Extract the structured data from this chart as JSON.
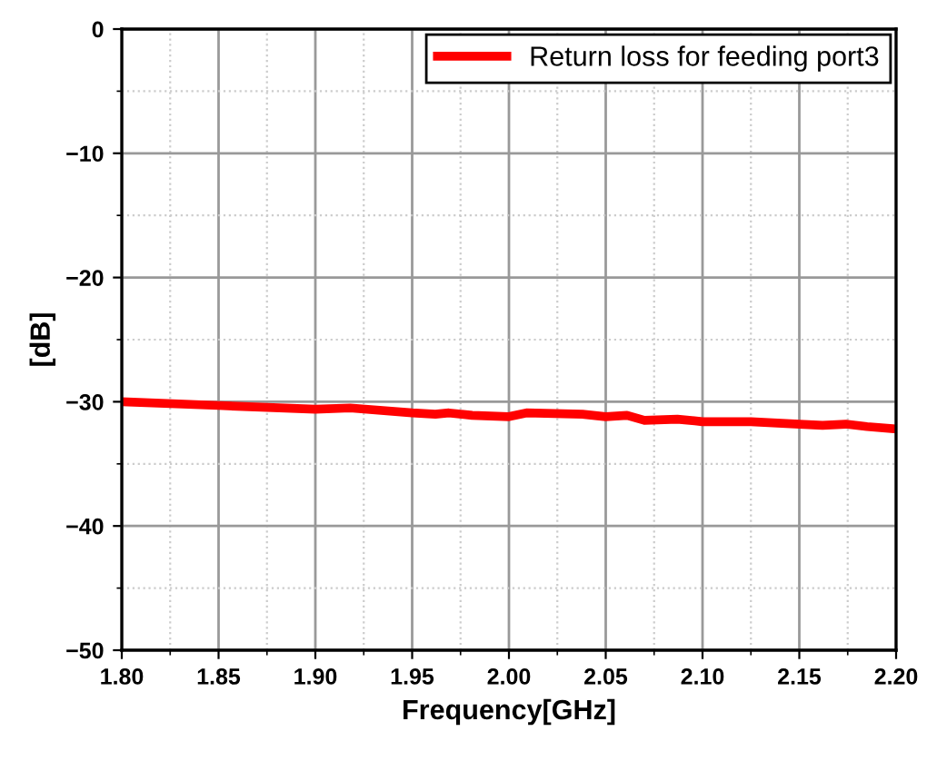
{
  "chart_data": {
    "type": "line",
    "xlabel": "Frequency[GHz]",
    "ylabel": "[dB]",
    "series": [
      {
        "name": "Return loss for feeding port3",
        "color": "#ff0000",
        "x": [
          1.8,
          1.85,
          1.9,
          1.918,
          1.95,
          1.962,
          1.969,
          1.981,
          2.0,
          2.009,
          2.038,
          2.05,
          2.061,
          2.07,
          2.087,
          2.1,
          2.125,
          2.15,
          2.162,
          2.174,
          2.185,
          2.2
        ],
        "values": [
          -30.0,
          -30.3,
          -30.6,
          -30.5,
          -30.9,
          -31.0,
          -30.9,
          -31.1,
          -31.2,
          -30.9,
          -31.0,
          -31.2,
          -31.1,
          -31.5,
          -31.4,
          -31.6,
          -31.6,
          -31.8,
          -31.9,
          -31.8,
          -32.0,
          -32.2
        ]
      }
    ],
    "xlim": [
      1.8,
      2.2
    ],
    "ylim": [
      -50,
      0
    ],
    "xticks": [
      {
        "value": 1.8,
        "label": "1.80"
      },
      {
        "value": 1.85,
        "label": "1.85"
      },
      {
        "value": 1.9,
        "label": "1.90"
      },
      {
        "value": 1.95,
        "label": "1.95"
      },
      {
        "value": 2.0,
        "label": "2.00"
      },
      {
        "value": 2.05,
        "label": "2.05"
      },
      {
        "value": 2.1,
        "label": "2.10"
      },
      {
        "value": 2.15,
        "label": "2.15"
      },
      {
        "value": 2.2,
        "label": "2.20"
      }
    ],
    "yticks": [
      {
        "value": -50,
        "label": "−50"
      },
      {
        "value": -40,
        "label": "−40"
      },
      {
        "value": -30,
        "label": "−30"
      },
      {
        "value": -20,
        "label": "−20"
      },
      {
        "value": -10,
        "label": "−10"
      },
      0
    ],
    "grid": true,
    "legend": "top right",
    "line_style": "solid",
    "marker": "none"
  }
}
